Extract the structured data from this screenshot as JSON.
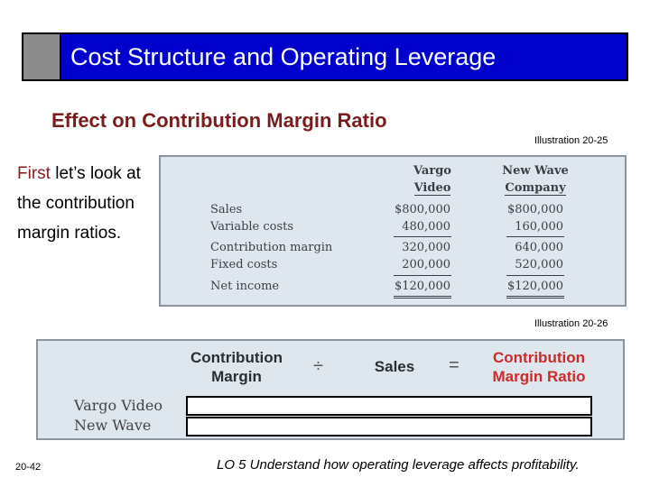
{
  "title": "Cost Structure and Operating Leverage",
  "subtitle": "Effect on Contribution Margin Ratio",
  "illustration_top": "Illustration 20-25",
  "illustration_bottom": "Illustration 20-26",
  "intro": {
    "highlight": "First",
    "rest": " let’s look at the contribution margin ratios."
  },
  "table": {
    "columns": [
      {
        "line1": "Vargo",
        "line2": "Video"
      },
      {
        "line1": "New Wave",
        "line2": "Company"
      }
    ],
    "rows": [
      {
        "label": "Sales",
        "values": [
          "$800,000",
          "$800,000"
        ]
      },
      {
        "label": "Variable costs",
        "values": [
          "480,000",
          "160,000"
        ]
      },
      {
        "label": "Contribution margin",
        "values": [
          "320,000",
          "640,000"
        ]
      },
      {
        "label": "Fixed costs",
        "values": [
          "200,000",
          "520,000"
        ]
      },
      {
        "label": "Net income",
        "values": [
          "$120,000",
          "$120,000"
        ]
      }
    ]
  },
  "formula": {
    "term1_line1": "Contribution",
    "term1_line2": "Margin",
    "divide": "÷",
    "term2": "Sales",
    "equals": "=",
    "result_line1": "Contribution",
    "result_line2": "Margin Ratio",
    "rows": [
      "Vargo Video",
      "New Wave"
    ]
  },
  "page_number": "20-42",
  "learning_objective": "LO 5  Understand how operating leverage affects profitability."
}
